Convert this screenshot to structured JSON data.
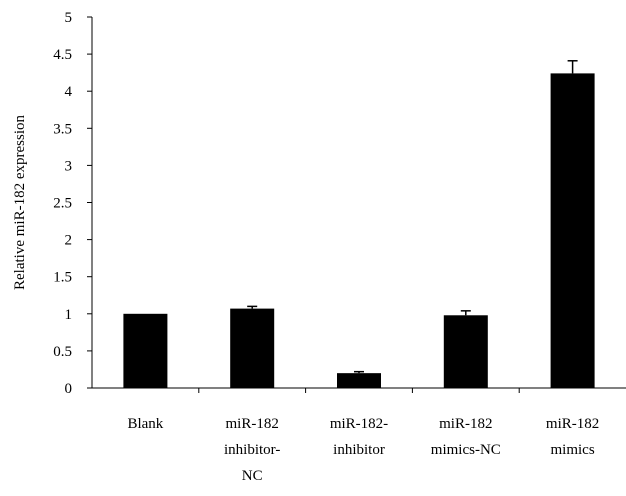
{
  "chart_data": {
    "type": "bar",
    "title": "",
    "xlabel": "",
    "ylabel": "Relative miR-182 expression",
    "ylim": [
      0,
      5
    ],
    "yticks": [
      "0",
      "0.5",
      "1",
      "1.5",
      "2",
      "2.5",
      "3",
      "3.5",
      "4",
      "4.5",
      "5"
    ],
    "categories": [
      [
        "Blank"
      ],
      [
        "miR-182",
        "inhibitor-",
        "NC"
      ],
      [
        "miR-182-",
        "inhibitor"
      ],
      [
        "miR-182",
        "mimics-NC"
      ],
      [
        "miR-182",
        "mimics"
      ]
    ],
    "values": [
      1.0,
      1.07,
      0.2,
      0.98,
      4.24
    ],
    "errors": [
      0.0,
      0.03,
      0.02,
      0.06,
      0.17
    ],
    "bar_color": "#000000",
    "grid": false,
    "legend": "none"
  }
}
